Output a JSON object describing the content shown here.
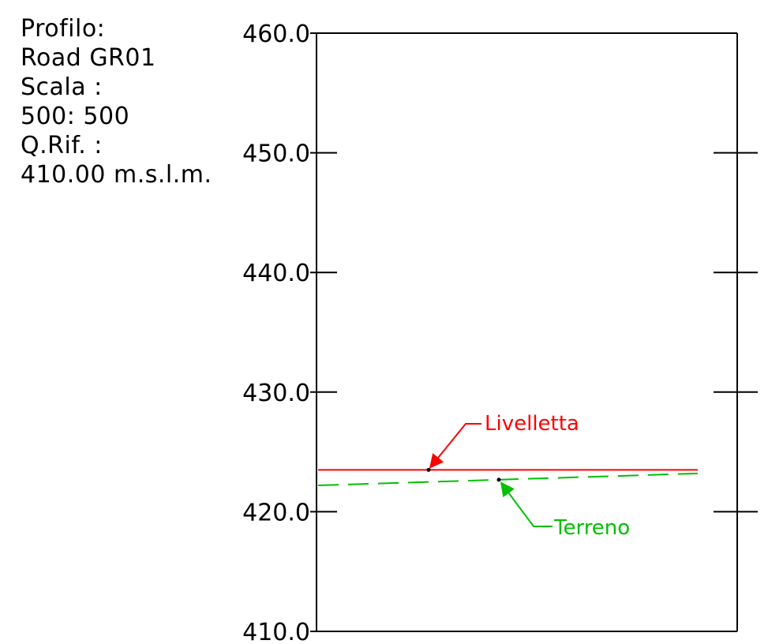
{
  "header": {
    "lines": [
      "Profilo:",
      "Road GR01",
      "Scala :",
      "500: 500",
      "Q.Rif. :",
      "410.00 m.s.l.m."
    ]
  },
  "axis": {
    "ticks": [
      "460.0",
      "450.0",
      "440.0",
      "430.0",
      "420.0",
      "410.0"
    ],
    "ylim": [
      410,
      460
    ]
  },
  "profiles": {
    "livelletta": {
      "label": "Livelletta",
      "color": "#ff0000",
      "start_elevation": 423.5,
      "end_elevation": 423.5,
      "line_style": "solid"
    },
    "terreno": {
      "label": "Terreno",
      "color": "#00c000",
      "start_elevation": 422.2,
      "end_elevation": 423.2,
      "line_style": "dashed"
    }
  },
  "colors": {
    "axis": "#000000",
    "background": "#ffffff"
  }
}
